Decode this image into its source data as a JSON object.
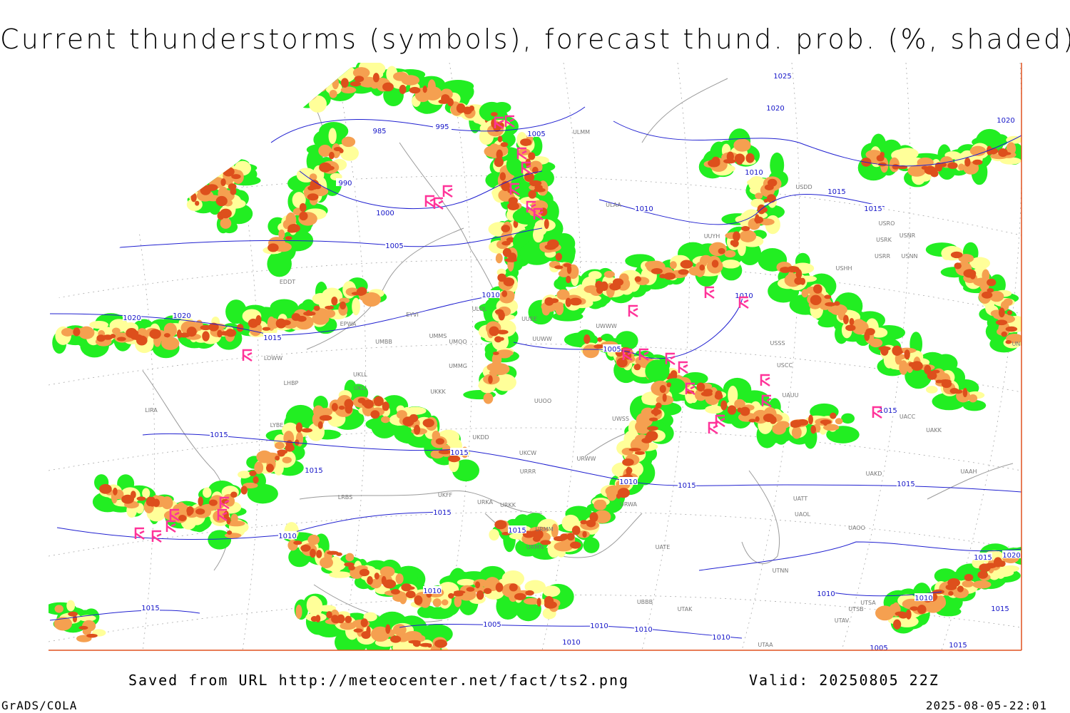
{
  "header": {
    "title": "Current thunderstorms (symbols), forecast thund. prob. (%, shaded)"
  },
  "footer": {
    "saved": "Saved from URL http://meteocenter.net/fact/ts2.png",
    "valid": "Valid: 20250805 22Z",
    "software": "GrADS/COLA",
    "timestamp": "2025-08-05-22:01"
  },
  "isobar_labels": [
    "985",
    "995",
    "1005",
    "990",
    "1000",
    "1005",
    "1010",
    "1020",
    "1020",
    "1015",
    "1025",
    "1020",
    "1020",
    "1010",
    "1015",
    "1010",
    "1015",
    "1010",
    "1005",
    "1015",
    "1015",
    "1015",
    "1015",
    "1010",
    "1015",
    "1015",
    "1015",
    "1015",
    "1010",
    "1015",
    "1020",
    "1010",
    "1010",
    "1010",
    "1015",
    "1015",
    "1005",
    "1010",
    "1010",
    "1010",
    "1010",
    "1005",
    "1015"
  ],
  "station_codes": [
    "ULMM",
    "ULAA",
    "ULOL",
    "UUEE",
    "UUWW",
    "UMMS",
    "UMOO",
    "UMBB",
    "UMMG",
    "UKLL",
    "UKLI",
    "UKKK",
    "UUOO",
    "UKDD",
    "UKCW",
    "URRR",
    "URWW",
    "URWA",
    "UKFF",
    "URKA",
    "URKK",
    "URMM",
    "URMN",
    "UUYH",
    "USDD",
    "USRO",
    "USRK",
    "USNR",
    "USRR",
    "USNN",
    "USHH",
    "USSS",
    "USCC",
    "UAUU",
    "UACC",
    "UAKK",
    "UAKD",
    "UAAH",
    "UATE",
    "UTNN",
    "UAOO",
    "UAOL",
    "UATT",
    "UTAK",
    "UTAA",
    "UTSA",
    "UTSB",
    "UTAV",
    "UBBB",
    "UNBB",
    "EPWA",
    "LOWW",
    "LHBP",
    "LYBE",
    "LRBS",
    "EDDT",
    "EYVI",
    "LIRA",
    "UWSS",
    "UWWW"
  ]
}
